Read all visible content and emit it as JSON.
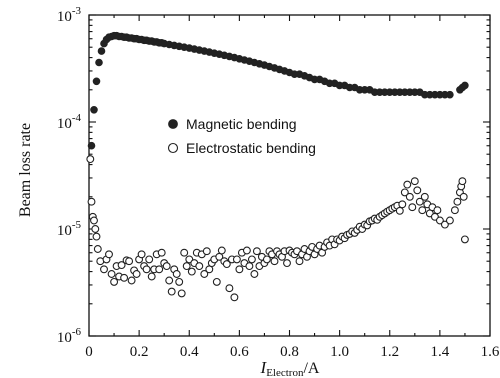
{
  "chart_data": {
    "type": "scatter",
    "title": "",
    "xlabel": {
      "main": "I",
      "sub": "Electron",
      "unit": "/A"
    },
    "ylabel": "Beam loss rate",
    "xlim": [
      0,
      1.6
    ],
    "ylim": [
      1e-06,
      0.001
    ],
    "yscale": "log",
    "x_ticks": [
      "0",
      "0.2",
      "0.4",
      "0.6",
      "0.8",
      "1.0",
      "1.2",
      "1.4",
      "1.6"
    ],
    "y_ticks": [
      {
        "base": "10",
        "exp": "-3"
      },
      {
        "base": "10",
        "exp": "-4"
      },
      {
        "base": "10",
        "exp": "-5"
      },
      {
        "base": "10",
        "exp": "-6"
      }
    ],
    "legend_position": "middle-left",
    "series": [
      {
        "name": "Magnetic bending",
        "marker": "filled-circle",
        "points": [
          [
            0.01,
            6e-05
          ],
          [
            0.02,
            0.00013
          ],
          [
            0.03,
            0.00024
          ],
          [
            0.04,
            0.00036
          ],
          [
            0.05,
            0.00046
          ],
          [
            0.06,
            0.00054
          ],
          [
            0.07,
            0.00059
          ],
          [
            0.08,
            0.00062
          ],
          [
            0.09,
            0.00063
          ],
          [
            0.1,
            0.00064
          ],
          [
            0.11,
            0.00064
          ],
          [
            0.12,
            0.00063
          ],
          [
            0.13,
            0.00063
          ],
          [
            0.14,
            0.00062
          ],
          [
            0.15,
            0.00062
          ],
          [
            0.16,
            0.00061
          ],
          [
            0.17,
            0.00061
          ],
          [
            0.18,
            0.0006
          ],
          [
            0.19,
            0.0006
          ],
          [
            0.2,
            0.00059
          ],
          [
            0.21,
            0.00059
          ],
          [
            0.22,
            0.00058
          ],
          [
            0.23,
            0.00058
          ],
          [
            0.24,
            0.00057
          ],
          [
            0.25,
            0.00057
          ],
          [
            0.26,
            0.00056
          ],
          [
            0.27,
            0.00056
          ],
          [
            0.28,
            0.00055
          ],
          [
            0.29,
            0.00055
          ],
          [
            0.3,
            0.00054
          ],
          [
            0.32,
            0.00053
          ],
          [
            0.34,
            0.00052
          ],
          [
            0.36,
            0.00051
          ],
          [
            0.38,
            0.0005
          ],
          [
            0.4,
            0.00049
          ],
          [
            0.42,
            0.00048
          ],
          [
            0.44,
            0.00047
          ],
          [
            0.46,
            0.00046
          ],
          [
            0.48,
            0.00045
          ],
          [
            0.5,
            0.00044
          ],
          [
            0.52,
            0.00043
          ],
          [
            0.54,
            0.00042
          ],
          [
            0.56,
            0.00041
          ],
          [
            0.58,
            0.0004
          ],
          [
            0.6,
            0.00039
          ],
          [
            0.62,
            0.00038
          ],
          [
            0.64,
            0.00037
          ],
          [
            0.66,
            0.00036
          ],
          [
            0.68,
            0.00035
          ],
          [
            0.7,
            0.00034
          ],
          [
            0.72,
            0.00033
          ],
          [
            0.74,
            0.00032
          ],
          [
            0.76,
            0.00031
          ],
          [
            0.78,
            0.0003
          ],
          [
            0.8,
            0.00029
          ],
          [
            0.82,
            0.00028
          ],
          [
            0.84,
            0.00028
          ],
          [
            0.86,
            0.00027
          ],
          [
            0.88,
            0.00026
          ],
          [
            0.9,
            0.00025
          ],
          [
            0.92,
            0.00025
          ],
          [
            0.94,
            0.00024
          ],
          [
            0.96,
            0.00023
          ],
          [
            0.98,
            0.00023
          ],
          [
            1.0,
            0.00022
          ],
          [
            1.02,
            0.00022
          ],
          [
            1.04,
            0.00021
          ],
          [
            1.06,
            0.00021
          ],
          [
            1.08,
            0.0002
          ],
          [
            1.1,
            0.0002
          ],
          [
            1.12,
            0.0002
          ],
          [
            1.14,
            0.00019
          ],
          [
            1.16,
            0.00019
          ],
          [
            1.18,
            0.00019
          ],
          [
            1.2,
            0.00019
          ],
          [
            1.22,
            0.00019
          ],
          [
            1.24,
            0.00019
          ],
          [
            1.26,
            0.00019
          ],
          [
            1.28,
            0.00019
          ],
          [
            1.3,
            0.00019
          ],
          [
            1.32,
            0.00019
          ],
          [
            1.34,
            0.00018
          ],
          [
            1.36,
            0.00018
          ],
          [
            1.38,
            0.00018
          ],
          [
            1.4,
            0.00018
          ],
          [
            1.42,
            0.00018
          ],
          [
            1.44,
            0.00018
          ],
          [
            1.48,
            0.0002
          ],
          [
            1.49,
            0.00021
          ],
          [
            1.5,
            0.00022
          ]
        ]
      },
      {
        "name": "Electrostatic bending",
        "marker": "hollow-circle",
        "points": [
          [
            0.005,
            4.5e-05
          ],
          [
            0.01,
            1.8e-05
          ],
          [
            0.015,
            1.3e-05
          ],
          [
            0.02,
            1.2e-05
          ],
          [
            0.025,
            1e-05
          ],
          [
            0.03,
            8.5e-06
          ],
          [
            0.035,
            6.5e-06
          ],
          [
            0.045,
            5e-06
          ],
          [
            0.06,
            4.2e-06
          ],
          [
            0.07,
            5.2e-06
          ],
          [
            0.08,
            5.8e-06
          ],
          [
            0.09,
            3.8e-06
          ],
          [
            0.1,
            3.2e-06
          ],
          [
            0.11,
            4.5e-06
          ],
          [
            0.12,
            3.6e-06
          ],
          [
            0.13,
            4.6e-06
          ],
          [
            0.14,
            3.5e-06
          ],
          [
            0.15,
            5.1e-06
          ],
          [
            0.16,
            5e-06
          ],
          [
            0.17,
            3.3e-06
          ],
          [
            0.18,
            4.1e-06
          ],
          [
            0.19,
            3.8e-06
          ],
          [
            0.2,
            5.2e-06
          ],
          [
            0.21,
            5.8e-06
          ],
          [
            0.22,
            4.5e-06
          ],
          [
            0.23,
            4.2e-06
          ],
          [
            0.24,
            5.2e-06
          ],
          [
            0.25,
            3.6e-06
          ],
          [
            0.26,
            4.2e-06
          ],
          [
            0.27,
            5.8e-06
          ],
          [
            0.28,
            4.2e-06
          ],
          [
            0.29,
            6e-06
          ],
          [
            0.3,
            4.8e-06
          ],
          [
            0.31,
            4.5e-06
          ],
          [
            0.32,
            3.3e-06
          ],
          [
            0.33,
            2.6e-06
          ],
          [
            0.34,
            4.2e-06
          ],
          [
            0.35,
            3.8e-06
          ],
          [
            0.36,
            3.2e-06
          ],
          [
            0.37,
            2.5e-06
          ],
          [
            0.38,
            6e-06
          ],
          [
            0.39,
            4.5e-06
          ],
          [
            0.4,
            5.2e-06
          ],
          [
            0.41,
            4e-06
          ],
          [
            0.42,
            4.8e-06
          ],
          [
            0.43,
            6e-06
          ],
          [
            0.44,
            4.5e-06
          ],
          [
            0.45,
            5.8e-06
          ],
          [
            0.46,
            3.8e-06
          ],
          [
            0.47,
            6.2e-06
          ],
          [
            0.48,
            4.2e-06
          ],
          [
            0.49,
            4.8e-06
          ],
          [
            0.5,
            5.2e-06
          ],
          [
            0.51,
            3.2e-06
          ],
          [
            0.52,
            5.5e-06
          ],
          [
            0.53,
            6.3e-06
          ],
          [
            0.54,
            5e-06
          ],
          [
            0.55,
            4.7e-06
          ],
          [
            0.56,
            2.8e-06
          ],
          [
            0.57,
            5.2e-06
          ],
          [
            0.58,
            2.3e-06
          ],
          [
            0.59,
            5.2e-06
          ],
          [
            0.6,
            4.2e-06
          ],
          [
            0.61,
            6e-06
          ],
          [
            0.62,
            4.8e-06
          ],
          [
            0.63,
            6.3e-06
          ],
          [
            0.64,
            4.5e-06
          ],
          [
            0.65,
            5.2e-06
          ],
          [
            0.66,
            3.8e-06
          ],
          [
            0.67,
            6.2e-06
          ],
          [
            0.68,
            4.5e-06
          ],
          [
            0.69,
            5.5e-06
          ],
          [
            0.7,
            4.8e-06
          ],
          [
            0.71,
            5.2e-06
          ],
          [
            0.72,
            6.2e-06
          ],
          [
            0.73,
            5.8e-06
          ],
          [
            0.74,
            5e-06
          ],
          [
            0.75,
            6.2e-06
          ],
          [
            0.76,
            5.8e-06
          ],
          [
            0.77,
            5.5e-06
          ],
          [
            0.78,
            6.2e-06
          ],
          [
            0.79,
            4.8e-06
          ],
          [
            0.8,
            6.3e-06
          ],
          [
            0.81,
            6e-06
          ],
          [
            0.82,
            5.8e-06
          ],
          [
            0.83,
            6.2e-06
          ],
          [
            0.84,
            5e-06
          ],
          [
            0.85,
            5.8e-06
          ],
          [
            0.86,
            6.5e-06
          ],
          [
            0.87,
            5.5e-06
          ],
          [
            0.88,
            6.2e-06
          ],
          [
            0.89,
            6.8e-06
          ],
          [
            0.9,
            5.8e-06
          ],
          [
            0.91,
            6.5e-06
          ],
          [
            0.92,
            7e-06
          ],
          [
            0.93,
            6e-06
          ],
          [
            0.94,
            6.8e-06
          ],
          [
            0.95,
            7.5e-06
          ],
          [
            0.96,
            7e-06
          ],
          [
            0.97,
            8e-06
          ],
          [
            0.98,
            7.2e-06
          ],
          [
            0.99,
            8e-06
          ],
          [
            1.0,
            7.8e-06
          ],
          [
            1.01,
            8.5e-06
          ],
          [
            1.02,
            8.2e-06
          ],
          [
            1.03,
            8.8e-06
          ],
          [
            1.04,
            9e-06
          ],
          [
            1.05,
            9.5e-06
          ],
          [
            1.06,
            9.2e-06
          ],
          [
            1.07,
            9.8e-06
          ],
          [
            1.08,
            1.05e-05
          ],
          [
            1.09,
            1e-05
          ],
          [
            1.1,
            1.1e-05
          ],
          [
            1.11,
            1.08e-05
          ],
          [
            1.12,
            1.18e-05
          ],
          [
            1.13,
            1.2e-05
          ],
          [
            1.14,
            1.25e-05
          ],
          [
            1.15,
            1.22e-05
          ],
          [
            1.16,
            1.3e-05
          ],
          [
            1.17,
            1.35e-05
          ],
          [
            1.18,
            1.4e-05
          ],
          [
            1.19,
            1.45e-05
          ],
          [
            1.2,
            1.5e-05
          ],
          [
            1.21,
            1.55e-05
          ],
          [
            1.22,
            1.6e-05
          ],
          [
            1.23,
            1.65e-05
          ],
          [
            1.24,
            1.48e-05
          ],
          [
            1.25,
            1.7e-05
          ],
          [
            1.26,
            2.2e-05
          ],
          [
            1.27,
            2.6e-05
          ],
          [
            1.28,
            2e-05
          ],
          [
            1.29,
            1.6e-05
          ],
          [
            1.3,
            2.8e-05
          ],
          [
            1.31,
            2.3e-05
          ],
          [
            1.32,
            1.8e-05
          ],
          [
            1.33,
            1.5e-05
          ],
          [
            1.34,
            2e-05
          ],
          [
            1.35,
            1.7e-05
          ],
          [
            1.36,
            1.4e-05
          ],
          [
            1.37,
            1.6e-05
          ],
          [
            1.38,
            1.3e-05
          ],
          [
            1.39,
            1.5e-05
          ],
          [
            1.4,
            1.2e-05
          ],
          [
            1.42,
            1.1e-05
          ],
          [
            1.44,
            1.2e-05
          ],
          [
            1.46,
            1.5e-05
          ],
          [
            1.47,
            1.8e-05
          ],
          [
            1.48,
            2.2e-05
          ],
          [
            1.485,
            2.5e-05
          ],
          [
            1.49,
            2.8e-05
          ],
          [
            1.495,
            2e-05
          ],
          [
            1.5,
            8e-06
          ]
        ]
      }
    ]
  }
}
